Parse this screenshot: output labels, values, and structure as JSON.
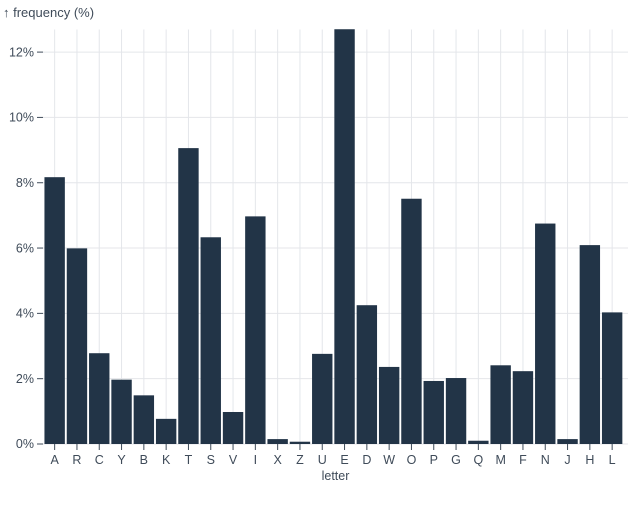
{
  "chart": {
    "y_axis_title": "↑ frequency (%)",
    "x_axis_title": "letter"
  },
  "chart_data": {
    "type": "bar",
    "title": "↑ frequency (%)",
    "xlabel": "letter",
    "ylabel": "frequency (%)",
    "categories": [
      "A",
      "R",
      "C",
      "Y",
      "B",
      "K",
      "T",
      "S",
      "V",
      "I",
      "X",
      "Z",
      "U",
      "E",
      "D",
      "W",
      "O",
      "P",
      "G",
      "Q",
      "M",
      "F",
      "N",
      "J",
      "H",
      "L"
    ],
    "values": [
      8.17,
      5.99,
      2.78,
      1.97,
      1.49,
      0.77,
      9.06,
      6.33,
      0.98,
      6.97,
      0.15,
      0.07,
      2.76,
      12.7,
      4.25,
      2.36,
      7.51,
      1.93,
      2.02,
      0.1,
      2.41,
      2.23,
      6.75,
      0.15,
      6.09,
      4.03
    ],
    "ylim": [
      0,
      12.7
    ],
    "yticks": [
      0,
      2,
      4,
      6,
      8,
      10,
      12
    ],
    "ytick_suffix": "%",
    "grid": true,
    "legend": "none",
    "colors": {
      "bar": "#223447",
      "grid": "#e4e6ea",
      "text": "#3f4b59",
      "tick": "#3f4b59",
      "background": "#ffffff"
    }
  }
}
